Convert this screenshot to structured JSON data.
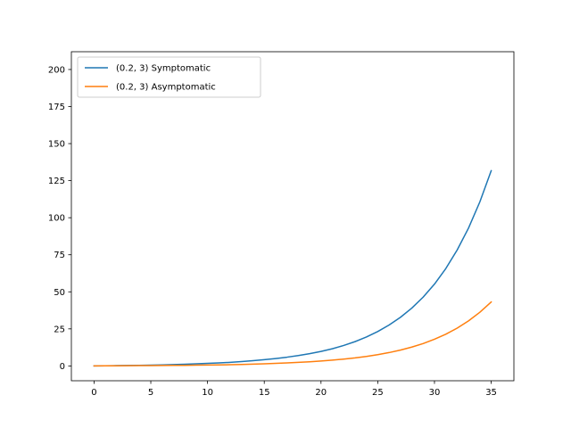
{
  "chart_data": {
    "type": "line",
    "title": "",
    "xlabel": "",
    "ylabel": "",
    "xlim": [
      -2,
      37
    ],
    "ylim": [
      -10,
      212
    ],
    "grid": false,
    "legend_placement": "upper-left",
    "x_ticks": [
      0,
      5,
      10,
      15,
      20,
      25,
      30,
      35
    ],
    "x_tick_labels": [
      "0",
      "5",
      "10",
      "15",
      "20",
      "25",
      "30",
      "35"
    ],
    "y_ticks": [
      0,
      25,
      50,
      75,
      100,
      125,
      150,
      175,
      200
    ],
    "y_tick_labels": [
      "0",
      "25",
      "50",
      "75",
      "100",
      "125",
      "150",
      "175",
      "200"
    ],
    "x": [
      0,
      1,
      2,
      3,
      4,
      5,
      6,
      7,
      8,
      9,
      10,
      11,
      12,
      13,
      14,
      15,
      16,
      17,
      18,
      19,
      20,
      21,
      22,
      23,
      24,
      25,
      26,
      27,
      28,
      29,
      30,
      31,
      32,
      33,
      34,
      35
    ],
    "series": [
      {
        "name": "(0.2, 3) Symptomatic",
        "color": "#1f77b4",
        "values": [
          0,
          0.1,
          0.2,
          0.3,
          0.4,
          0.5,
          0.7,
          0.9,
          1.1,
          1.4,
          1.7,
          2.0,
          2.4,
          2.9,
          3.5,
          4.2,
          5.0,
          5.9,
          7.0,
          8.3,
          9.8,
          11.6,
          13.8,
          16.4,
          19.5,
          23.2,
          27.6,
          32.8,
          39.0,
          46.4,
          55.2,
          65.7,
          78.2,
          93.0,
          110.7,
          131.7
        ]
      },
      {
        "name": "(0.2, 3) Asymptomatic",
        "color": "#ff7f0e",
        "values": [
          0,
          0.05,
          0.1,
          0.15,
          0.2,
          0.25,
          0.3,
          0.35,
          0.4,
          0.5,
          0.6,
          0.7,
          0.8,
          1.0,
          1.2,
          1.4,
          1.7,
          2.0,
          2.4,
          2.8,
          3.3,
          3.9,
          4.6,
          5.4,
          6.4,
          7.6,
          9.0,
          10.7,
          12.7,
          15.1,
          18.0,
          21.4,
          25.5,
          30.4,
          36.2,
          43.1
        ]
      }
    ]
  }
}
